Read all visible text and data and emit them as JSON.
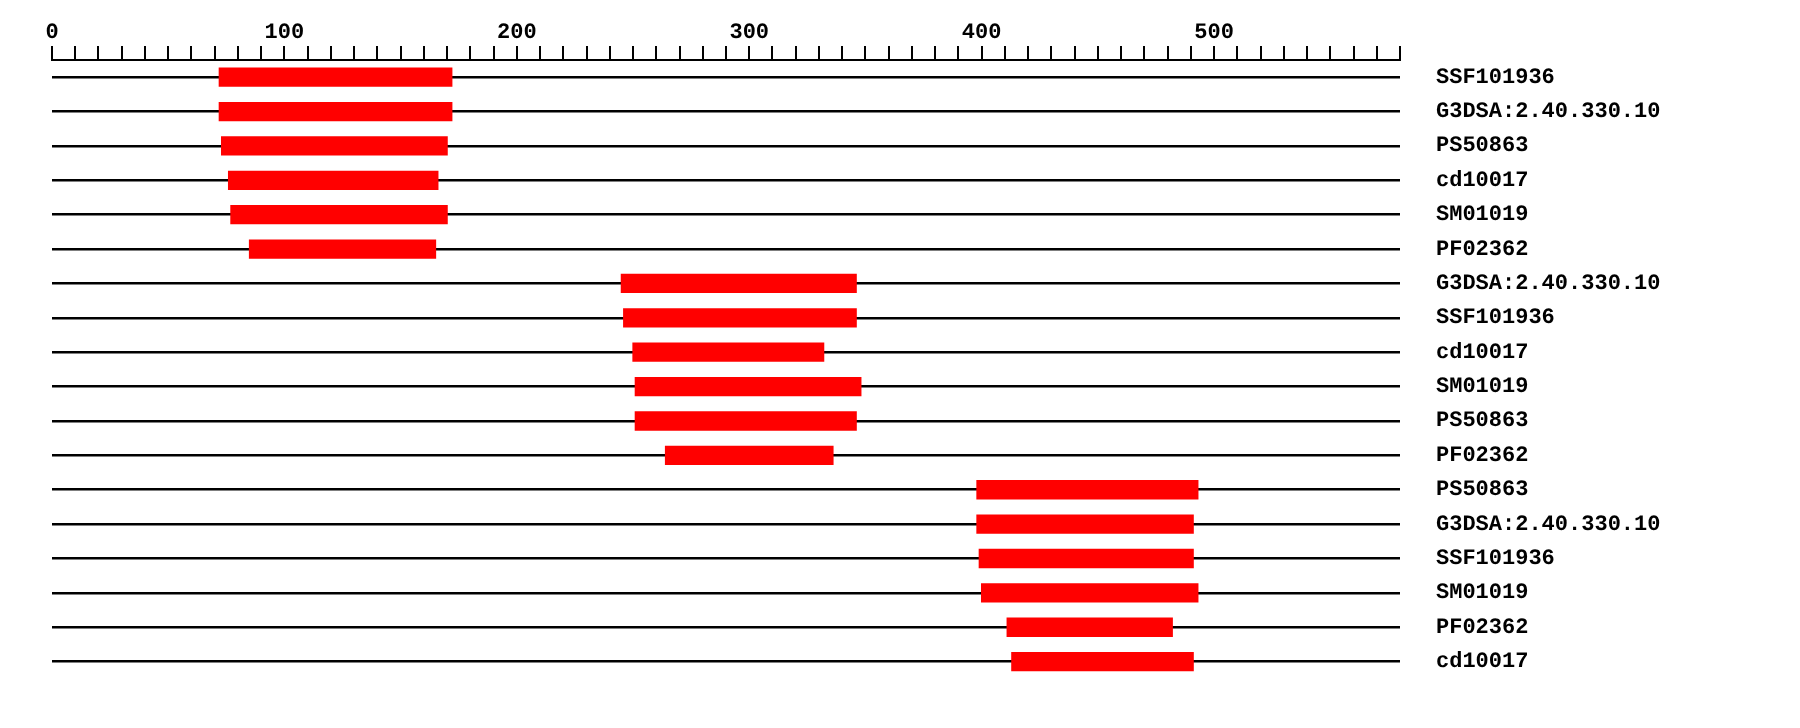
{
  "chart_data": {
    "type": "bar",
    "orientation": "horizontal",
    "color": "#ff0000",
    "grid": "y",
    "categories": [
      "SSF101936",
      "G3DSA:2.40.330.10",
      "PS50863",
      "cd10017",
      "SM01019",
      "PF02362",
      "G3DSA:2.40.330.10",
      "SSF101936",
      "cd10017",
      "SM01019",
      "PS50863",
      "PF02362",
      "PS50863",
      "G3DSA:2.40.330.10",
      "SSF101936",
      "SM01019",
      "PF02362",
      "cd10017"
    ],
    "base": [
      72,
      72,
      73,
      76,
      77,
      85,
      245,
      246,
      250,
      251,
      251,
      264,
      398,
      398,
      399,
      400,
      411,
      413
    ],
    "values": [
      100,
      100,
      97,
      90,
      93,
      80,
      101,
      100,
      82,
      97,
      95,
      72,
      95,
      93,
      92,
      93,
      71,
      78
    ],
    "xlim": [
      0,
      580
    ],
    "xticks": [
      0,
      {
        "value": 10,
        "label": null
      },
      {
        "value": 20,
        "label": null
      },
      {
        "value": 30,
        "label": null
      },
      {
        "value": 40,
        "label": null
      },
      {
        "value": 50,
        "label": null
      },
      {
        "value": 60,
        "label": null
      },
      {
        "value": 70,
        "label": null
      },
      {
        "value": 80,
        "label": null
      },
      {
        "value": 90,
        "label": null
      },
      100,
      {
        "value": 110,
        "label": null
      },
      {
        "value": 120,
        "label": null
      },
      {
        "value": 130,
        "label": null
      },
      {
        "value": 140,
        "label": null
      },
      {
        "value": 150,
        "label": null
      },
      {
        "value": 160,
        "label": null
      },
      {
        "value": 170,
        "label": null
      },
      {
        "value": 180,
        "label": null
      },
      {
        "value": 190,
        "label": null
      },
      200,
      {
        "value": 210,
        "label": null
      },
      {
        "value": 220,
        "label": null
      },
      {
        "value": 230,
        "label": null
      },
      {
        "value": 240,
        "label": null
      },
      {
        "value": 250,
        "label": null
      },
      {
        "value": 260,
        "label": null
      },
      {
        "value": 270,
        "label": null
      },
      {
        "value": 280,
        "label": null
      },
      {
        "value": 290,
        "label": null
      },
      300,
      {
        "value": 310,
        "label": null
      },
      {
        "value": 320,
        "label": null
      },
      {
        "value": 330,
        "label": null
      },
      {
        "value": 340,
        "label": null
      },
      {
        "value": 350,
        "label": null
      },
      {
        "value": 360,
        "label": null
      },
      {
        "value": 370,
        "label": null
      },
      {
        "value": 380,
        "label": null
      },
      {
        "value": 390,
        "label": null
      },
      400,
      {
        "value": 410,
        "label": null
      },
      {
        "value": 420,
        "label": null
      },
      {
        "value": 430,
        "label": null
      },
      {
        "value": 440,
        "label": null
      },
      {
        "value": 450,
        "label": null
      },
      {
        "value": 460,
        "label": null
      },
      {
        "value": 470,
        "label": null
      },
      {
        "value": 480,
        "label": null
      },
      {
        "value": 490,
        "label": null
      },
      500,
      {
        "value": 510,
        "label": null
      },
      {
        "value": 520,
        "label": null
      },
      {
        "value": 530,
        "label": null
      },
      {
        "value": 540,
        "label": null
      },
      {
        "value": 550,
        "label": null
      },
      {
        "value": 560,
        "label": null
      },
      {
        "value": 570,
        "label": null
      },
      {
        "value": 580,
        "label": null
      }
    ]
  }
}
